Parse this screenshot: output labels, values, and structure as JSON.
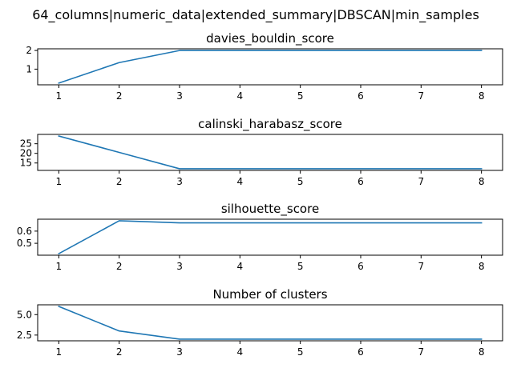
{
  "figure": {
    "title": "64_columns|numeric_data|extended_summary|DBSCAN|min_samples"
  },
  "colors": {
    "line": "#1f77b4"
  },
  "chart_data": [
    {
      "type": "line",
      "title": "davies_bouldin_score",
      "x": [
        1,
        2,
        3,
        4,
        5,
        6,
        7,
        8
      ],
      "values": [
        0.25,
        1.35,
        2.0,
        2.0,
        2.0,
        2.0,
        2.0,
        2.0
      ],
      "xlim": [
        0.65,
        8.35
      ],
      "ylim": [
        0.16,
        2.09
      ],
      "xticks": [
        1,
        2,
        3,
        4,
        5,
        6,
        7,
        8
      ],
      "yticks": [
        1,
        2
      ],
      "ytick_labels": [
        "1",
        "2"
      ],
      "xlabel": "",
      "ylabel": "",
      "grid": false
    },
    {
      "type": "line",
      "title": "calinski_harabasz_score",
      "x": [
        1,
        2,
        3,
        4,
        5,
        6,
        7,
        8
      ],
      "values": [
        29,
        20.5,
        12,
        12,
        12,
        12,
        12,
        12
      ],
      "xlim": [
        0.65,
        8.35
      ],
      "ylim": [
        11.15,
        29.85
      ],
      "xticks": [
        1,
        2,
        3,
        4,
        5,
        6,
        7,
        8
      ],
      "yticks": [
        15,
        20,
        25
      ],
      "ytick_labels": [
        "15",
        "20",
        "25"
      ],
      "xlabel": "",
      "ylabel": "",
      "grid": false
    },
    {
      "type": "line",
      "title": "silhouette_score",
      "x": [
        1,
        2,
        3,
        4,
        5,
        6,
        7,
        8
      ],
      "values": [
        0.415,
        0.685,
        0.668,
        0.668,
        0.668,
        0.668,
        0.668,
        0.668
      ],
      "xlim": [
        0.65,
        8.35
      ],
      "ylim": [
        0.402,
        0.698
      ],
      "xticks": [
        1,
        2,
        3,
        4,
        5,
        6,
        7,
        8
      ],
      "yticks": [
        0.5,
        0.6
      ],
      "ytick_labels": [
        "0.5",
        "0.6"
      ],
      "xlabel": "",
      "ylabel": "",
      "grid": false
    },
    {
      "type": "line",
      "title": "Number of clusters",
      "x": [
        1,
        2,
        3,
        4,
        5,
        6,
        7,
        8
      ],
      "values": [
        6,
        3,
        2,
        2,
        2,
        2,
        2,
        2
      ],
      "xlim": [
        0.65,
        8.35
      ],
      "ylim": [
        1.8,
        6.2
      ],
      "xticks": [
        1,
        2,
        3,
        4,
        5,
        6,
        7,
        8
      ],
      "yticks": [
        2.5,
        5.0
      ],
      "ytick_labels": [
        "2.5",
        "5.0"
      ],
      "xlabel": "",
      "ylabel": "",
      "grid": false
    }
  ]
}
